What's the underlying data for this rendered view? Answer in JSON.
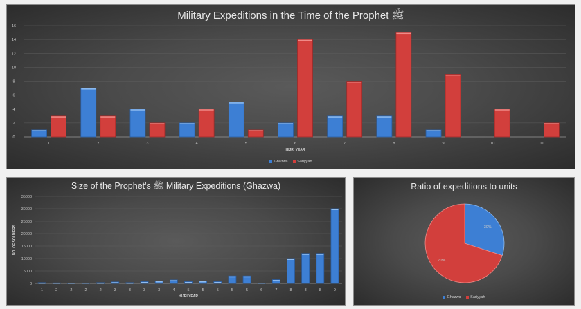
{
  "colors": {
    "ghazwa": "#3d7fd4",
    "sariyyah": "#d23f3c"
  },
  "chart_data": [
    {
      "type": "bar",
      "title": "Military Expeditions in the Time of the Prophet ﷺ",
      "xlabel": "HIJRI YEAR",
      "ylabel": "",
      "categories": [
        "1",
        "2",
        "3",
        "4",
        "5",
        "6",
        "7",
        "8",
        "9",
        "10",
        "11"
      ],
      "series": [
        {
          "name": "Ghazwa",
          "values": [
            1,
            7,
            4,
            2,
            5,
            2,
            3,
            3,
            1,
            0,
            0
          ]
        },
        {
          "name": "Sariyyah",
          "values": [
            3,
            3,
            2,
            4,
            1,
            14,
            8,
            15,
            9,
            4,
            2
          ]
        }
      ],
      "ylim": [
        0,
        16
      ],
      "yticks": [
        "0",
        "2",
        "4",
        "6",
        "8",
        "10",
        "12",
        "14",
        "16"
      ],
      "grid": true,
      "legend": "bottom"
    },
    {
      "type": "bar",
      "title": "Size of the Prophet's ﷺ Military Expeditions (Ghazwa)",
      "xlabel": "HIJRI YEAR",
      "ylabel": "NO. OF SOLDIERS",
      "categories": [
        "1",
        "2",
        "2",
        "2",
        "2",
        "3",
        "3",
        "3",
        "3",
        "4",
        "5",
        "5",
        "5",
        "5",
        "5",
        "6",
        "7",
        "8",
        "8",
        "8",
        "9"
      ],
      "series": [
        {
          "name": "Ghazwa",
          "values": [
            300,
            200,
            150,
            100,
            300,
            600,
            300,
            700,
            1000,
            1400,
            700,
            1000,
            700,
            3000,
            3000,
            100,
            1500,
            10000,
            12000,
            12000,
            30000
          ]
        }
      ],
      "ylim": [
        0,
        35000
      ],
      "yticks": [
        "0",
        "5000",
        "10000",
        "15000",
        "20000",
        "25000",
        "30000",
        "35000"
      ],
      "grid": true
    },
    {
      "type": "pie",
      "title": "Ratio of expeditions to units",
      "slices": [
        {
          "name": "Ghazwa",
          "value": 30,
          "label": "30%"
        },
        {
          "name": "Sariyyah",
          "value": 70,
          "label": "70%"
        }
      ],
      "legend": "bottom"
    }
  ]
}
